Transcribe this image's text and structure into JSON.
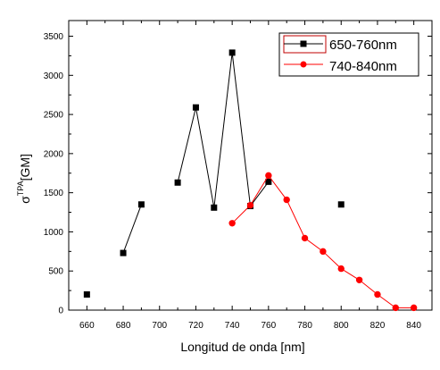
{
  "chart_data": {
    "type": "line",
    "title": "",
    "xlabel": "Longitud de onda [nm]",
    "ylabel": {
      "base": "σ",
      "sup": "TPA",
      "unit": "[GM]"
    },
    "xlim": [
      650,
      850
    ],
    "ylim": [
      0,
      3700
    ],
    "xticks": [
      660,
      680,
      700,
      720,
      740,
      760,
      780,
      800,
      820,
      840
    ],
    "yticks": [
      0,
      500,
      1000,
      1500,
      2000,
      2500,
      3000,
      3500
    ],
    "grid": false,
    "legend_position": "top-right",
    "series": [
      {
        "name": "650-760nm",
        "color": "#000000",
        "marker": "square",
        "segments": [
          [
            [
              660,
              200
            ]
          ],
          [
            [
              680,
              730
            ],
            [
              690,
              1350
            ]
          ],
          [
            [
              710,
              1630
            ],
            [
              720,
              2590
            ],
            [
              730,
              1310
            ],
            [
              740,
              3290
            ],
            [
              750,
              1330
            ],
            [
              760,
              1640
            ]
          ],
          [
            [
              800,
              1350
            ]
          ]
        ]
      },
      {
        "name": "740-840nm",
        "color": "#ff0000",
        "marker": "circle",
        "segments": [
          [
            [
              740,
              1110
            ],
            [
              750,
              1340
            ],
            [
              760,
              1720
            ],
            [
              770,
              1410
            ],
            [
              780,
              920
            ],
            [
              790,
              750
            ],
            [
              800,
              530
            ],
            [
              810,
              385
            ],
            [
              820,
              200
            ],
            [
              830,
              30
            ],
            [
              840,
              30
            ]
          ]
        ]
      }
    ]
  }
}
